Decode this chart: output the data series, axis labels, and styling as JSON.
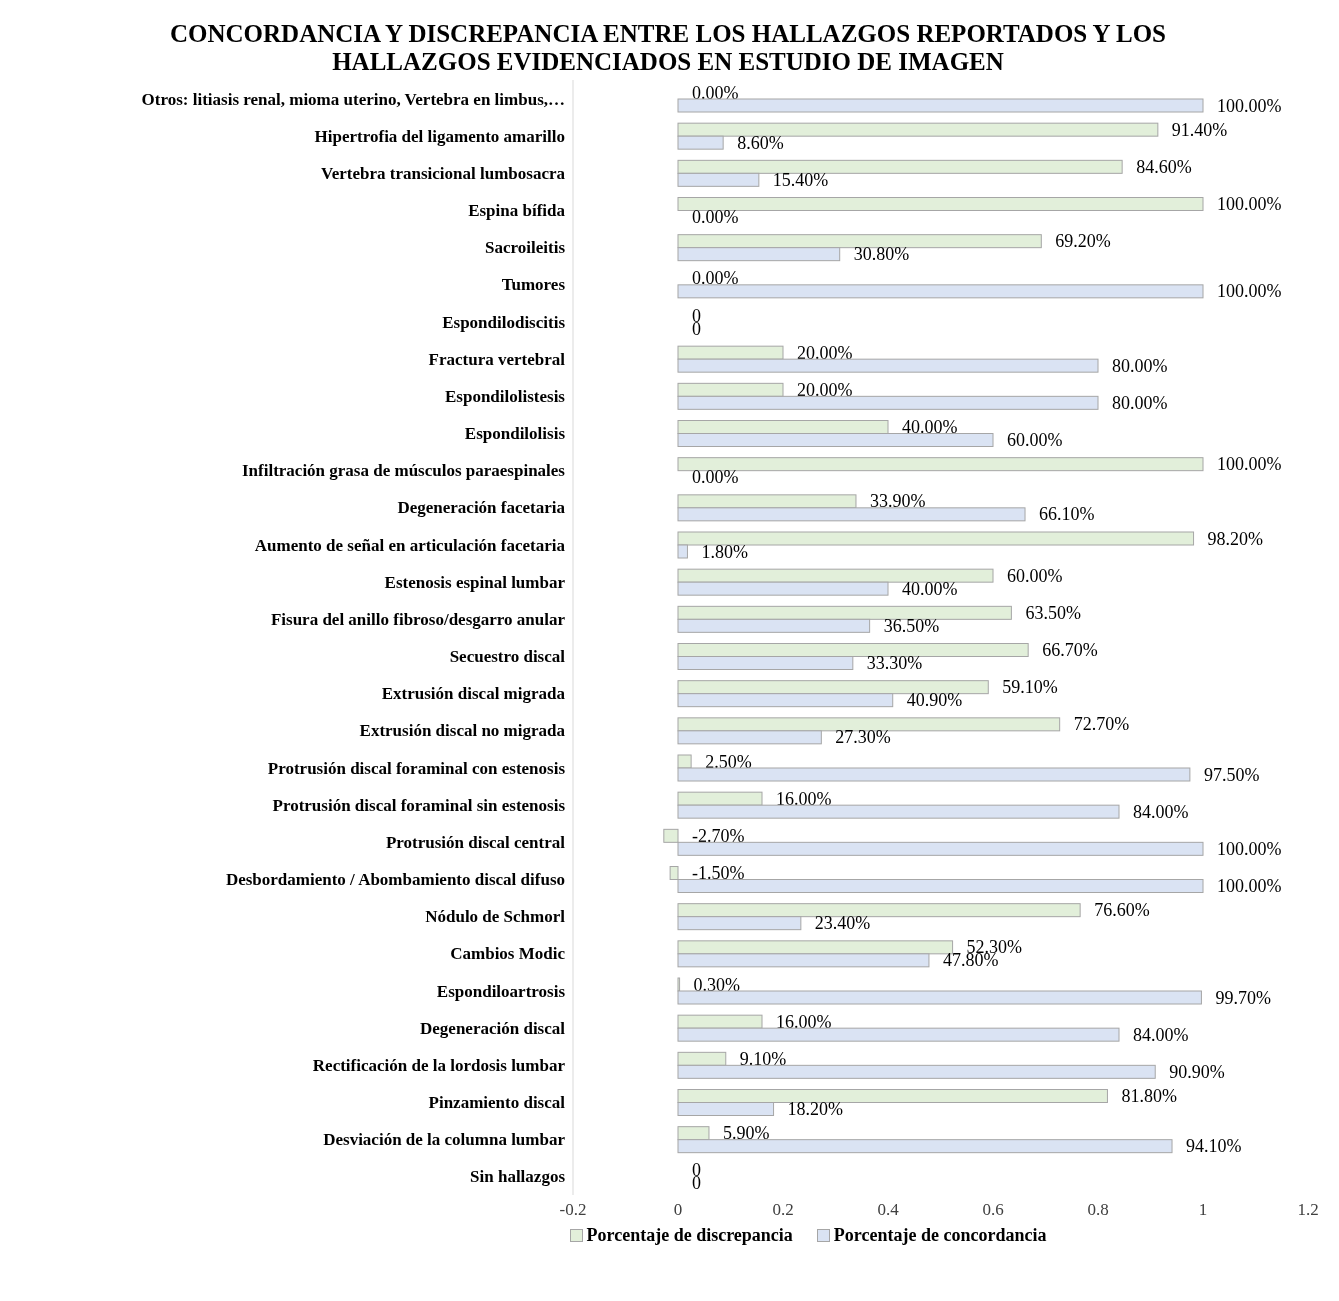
{
  "chart_data": {
    "type": "bar",
    "orientation": "horizontal",
    "title": "CONCORDANCIA Y DISCREPANCIA ENTRE LOS HALLAZGOS REPORTADOS Y LOS HALLAZGOS EVIDENCIADOS EN ESTUDIO DE IMAGEN",
    "categories": [
      "Otros: litiasis renal, mioma uterino, Vertebra en limbus,…",
      "Hipertrofia del ligamento amarillo",
      "Vertebra transicional lumbosacra",
      "Espina bífida",
      "Sacroileitis",
      "Tumores",
      "Espondilodiscitis",
      "Fractura vertebral",
      "Espondilolistesis",
      "Espondilolisis",
      "Infiltración grasa de músculos paraespinales",
      "Degeneración facetaria",
      "Aumento de señal en articulación facetaria",
      "Estenosis espinal lumbar",
      "Fisura del anillo fibroso/desgarro anular",
      "Secuestro discal",
      "Extrusión discal migrada",
      "Extrusión discal no migrada",
      "Protrusión discal foraminal con estenosis",
      "Protrusión discal foraminal sin estenosis",
      "Protrusión discal central",
      "Desbordamiento / Abombamiento discal difuso",
      "Nódulo de Schmorl",
      "Cambios Modic",
      "Espondiloartrosis",
      "Degeneración discal",
      "Rectificación de la lordosis lumbar",
      "Pinzamiento discal",
      "Desviación de la columna lumbar",
      "Sin hallazgos"
    ],
    "series": [
      {
        "name": "Porcentaje de discrepancia",
        "color": "#e2efda",
        "values": [
          0,
          0.914,
          0.846,
          1,
          0.692,
          0,
          0,
          0.2,
          0.2,
          0.4,
          1,
          0.339,
          0.982,
          0.6,
          0.635,
          0.667,
          0.591,
          0.727,
          0.025,
          0.16,
          -0.027,
          -0.015,
          0.766,
          0.523,
          0.003,
          0.16,
          0.091,
          0.818,
          0.059,
          0
        ],
        "value_labels": [
          "0.00%",
          "91.40%",
          "84.60%",
          "100.00%",
          "69.20%",
          "0.00%",
          "0",
          "20.00%",
          "20.00%",
          "40.00%",
          "100.00%",
          "33.90%",
          "98.20%",
          "60.00%",
          "63.50%",
          "66.70%",
          "59.10%",
          "72.70%",
          "2.50%",
          "16.00%",
          "-2.70%",
          "-1.50%",
          "76.60%",
          "52.30%",
          "0.30%",
          "16.00%",
          "9.10%",
          "81.80%",
          "5.90%",
          "0"
        ]
      },
      {
        "name": "Porcentaje de concordancia",
        "color": "#dae3f3",
        "values": [
          1,
          0.086,
          0.154,
          0,
          0.308,
          1,
          0,
          0.8,
          0.8,
          0.6,
          0,
          0.661,
          0.018,
          0.4,
          0.365,
          0.333,
          0.409,
          0.273,
          0.975,
          0.84,
          1,
          1,
          0.234,
          0.478,
          0.997,
          0.84,
          0.909,
          0.182,
          0.941,
          0
        ],
        "value_labels": [
          "100.00%",
          "8.60%",
          "15.40%",
          "0.00%",
          "30.80%",
          "100.00%",
          "0",
          "80.00%",
          "80.00%",
          "60.00%",
          "0.00%",
          "66.10%",
          "1.80%",
          "40.00%",
          "36.50%",
          "33.30%",
          "40.90%",
          "27.30%",
          "97.50%",
          "84.00%",
          "100.00%",
          "100.00%",
          "23.40%",
          "47.80%",
          "99.70%",
          "84.00%",
          "90.90%",
          "18.20%",
          "94.10%",
          "0"
        ]
      }
    ],
    "xlim": [
      -0.2,
      1.2
    ],
    "xticks": [
      -0.2,
      0,
      0.2,
      0.4,
      0.6,
      0.8,
      1,
      1.2
    ],
    "legend": "bottom"
  }
}
